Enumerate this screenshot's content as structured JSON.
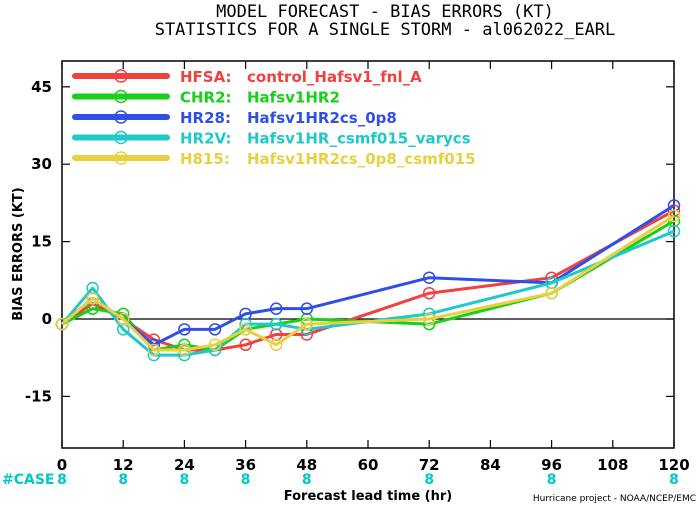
{
  "chart_data": {
    "type": "line",
    "title": "MODEL FORECAST - BIAS ERRORS (KT)",
    "subtitle": "STATISTICS FOR A SINGLE STORM - al062022_EARL",
    "xlabel": "Forecast lead time (hr)",
    "ylabel": "BIAS ERRORS (KT)",
    "xlim": [
      0,
      120
    ],
    "ylim": [
      -25,
      50
    ],
    "x_ticks": [
      0,
      12,
      24,
      36,
      48,
      60,
      72,
      84,
      96,
      108,
      120
    ],
    "y_ticks": [
      -15,
      0,
      15,
      30,
      45
    ],
    "zero_line": 0,
    "grid": false,
    "legend_placement": "top-left",
    "case_label": "#CASE",
    "case_color": "#00C8C8",
    "cases": [
      {
        "x": 0,
        "n": "8"
      },
      {
        "x": 12,
        "n": "8"
      },
      {
        "x": 24,
        "n": "8"
      },
      {
        "x": 36,
        "n": "8"
      },
      {
        "x": 48,
        "n": "8"
      },
      {
        "x": 72,
        "n": "8"
      },
      {
        "x": 96,
        "n": "8"
      },
      {
        "x": 120,
        "n": "8"
      }
    ],
    "credit": "Hurricane project - NOAA/NCEP/EMC",
    "series": [
      {
        "code": "HFSA:",
        "name": "control_Hafsv1_fnl_A",
        "color": "#F04040",
        "x": [
          0,
          6,
          12,
          18,
          24,
          30,
          36,
          42,
          48,
          72,
          96,
          120
        ],
        "y": [
          -1,
          3,
          0,
          -4,
          -6,
          -6,
          -5,
          -3,
          -3,
          5,
          8,
          21
        ]
      },
      {
        "code": "CHR2:",
        "name": "Hafsv1HR2",
        "color": "#18D018",
        "x": [
          0,
          6,
          12,
          18,
          24,
          30,
          36,
          42,
          48,
          72,
          96,
          120
        ],
        "y": [
          -1,
          2,
          1,
          -6,
          -5,
          -6,
          -2,
          -1,
          0,
          -1,
          5,
          19
        ]
      },
      {
        "code": "HR28:",
        "name": "Hafsv1HR2cs_0p8",
        "color": "#2F4FE6",
        "x": [
          0,
          6,
          12,
          18,
          24,
          30,
          36,
          42,
          48,
          72,
          96,
          120
        ],
        "y": [
          -1,
          4,
          0,
          -5,
          -2,
          -2,
          1,
          2,
          2,
          8,
          7,
          22
        ]
      },
      {
        "code": "HR2V:",
        "name": "Hafsv1HR_csmf015_varycs",
        "color": "#20C8C8",
        "x": [
          0,
          6,
          12,
          18,
          24,
          30,
          36,
          42,
          48,
          72,
          96,
          120
        ],
        "y": [
          -1,
          6,
          -2,
          -7,
          -7,
          -6,
          -1,
          -1,
          -2,
          1,
          7,
          17
        ]
      },
      {
        "code": "H815:",
        "name": "Hafsv1HR2cs_0p8_csmf015",
        "color": "#E8D040",
        "x": [
          0,
          6,
          12,
          18,
          24,
          30,
          36,
          42,
          48,
          72,
          96,
          120
        ],
        "y": [
          -1,
          4,
          0,
          -6,
          -6,
          -5,
          -2,
          -5,
          -1,
          0,
          5,
          20
        ]
      }
    ]
  }
}
